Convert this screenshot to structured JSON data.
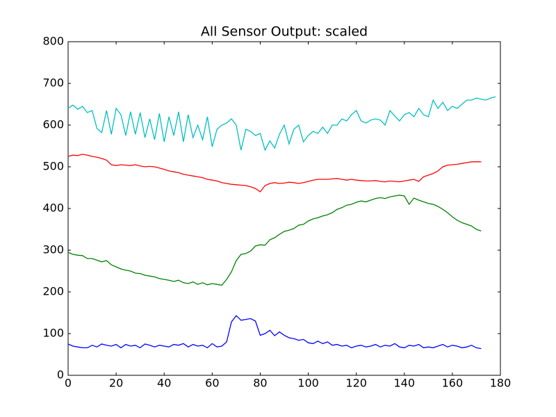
{
  "chart_data": {
    "type": "line",
    "title": "All Sensor Output: scaled",
    "xlim": [
      0,
      180
    ],
    "xticks": [
      0,
      20,
      40,
      60,
      80,
      100,
      120,
      140,
      160,
      180
    ],
    "ylim": [
      0,
      800
    ],
    "yticks": [
      0,
      100,
      200,
      300,
      400,
      500,
      600,
      700,
      800
    ],
    "grid": false,
    "series": [
      {
        "color": "#0000ff",
        "x": [
          0,
          2,
          4,
          6,
          8,
          10,
          12,
          14,
          16,
          18,
          20,
          22,
          24,
          26,
          28,
          30,
          32,
          34,
          36,
          38,
          40,
          42,
          44,
          46,
          48,
          50,
          52,
          54,
          56,
          58,
          60,
          62,
          64,
          66,
          68,
          70,
          72,
          74,
          76,
          78,
          80,
          82,
          84,
          86,
          88,
          90,
          92,
          94,
          96,
          98,
          100,
          102,
          104,
          106,
          108,
          110,
          112,
          114,
          116,
          118,
          120,
          122,
          124,
          126,
          128,
          130,
          132,
          134,
          136,
          138,
          140,
          142,
          144,
          146,
          148,
          150,
          152,
          154,
          156,
          158,
          160,
          162,
          164,
          166,
          168,
          170,
          172
        ],
        "values": [
          75,
          70,
          68,
          66,
          66,
          72,
          68,
          75,
          72,
          70,
          74,
          66,
          74,
          70,
          72,
          66,
          75,
          72,
          68,
          72,
          70,
          68,
          74,
          72,
          76,
          68,
          74,
          70,
          72,
          66,
          76,
          68,
          70,
          80,
          128,
          143,
          132,
          134,
          136,
          130,
          96,
          100,
          108,
          95,
          104,
          96,
          90,
          88,
          84,
          86,
          78,
          76,
          82,
          76,
          80,
          72,
          74,
          70,
          72,
          66,
          70,
          72,
          68,
          70,
          74,
          68,
          72,
          70,
          76,
          68,
          66,
          72,
          70,
          74,
          66,
          68,
          66,
          70,
          74,
          68,
          72,
          70,
          66,
          68,
          72,
          66,
          64
        ]
      },
      {
        "color": "#008000",
        "x": [
          0,
          2,
          4,
          6,
          8,
          10,
          12,
          14,
          16,
          18,
          20,
          22,
          24,
          26,
          28,
          30,
          32,
          34,
          36,
          38,
          40,
          42,
          44,
          46,
          48,
          50,
          52,
          54,
          56,
          58,
          60,
          62,
          64,
          66,
          68,
          70,
          72,
          74,
          76,
          78,
          80,
          82,
          84,
          86,
          88,
          90,
          92,
          94,
          96,
          98,
          100,
          102,
          104,
          106,
          108,
          110,
          112,
          114,
          116,
          118,
          120,
          122,
          124,
          126,
          128,
          130,
          132,
          134,
          136,
          138,
          140,
          142,
          144,
          146,
          148,
          150,
          152,
          154,
          156,
          158,
          160,
          162,
          164,
          166,
          168,
          170,
          172
        ],
        "values": [
          295,
          290,
          288,
          287,
          280,
          280,
          276,
          272,
          275,
          265,
          260,
          255,
          252,
          250,
          245,
          244,
          240,
          238,
          236,
          232,
          230,
          228,
          225,
          228,
          222,
          220,
          224,
          218,
          222,
          217,
          220,
          218,
          216,
          230,
          248,
          275,
          290,
          292,
          298,
          310,
          313,
          312,
          325,
          330,
          338,
          345,
          348,
          352,
          360,
          362,
          370,
          375,
          378,
          382,
          385,
          390,
          398,
          402,
          408,
          410,
          415,
          418,
          416,
          420,
          424,
          426,
          424,
          428,
          430,
          432,
          430,
          410,
          425,
          420,
          416,
          412,
          410,
          405,
          398,
          390,
          380,
          372,
          366,
          362,
          358,
          350,
          346
        ]
      },
      {
        "color": "#ff0000",
        "x": [
          0,
          2,
          4,
          6,
          8,
          10,
          12,
          14,
          16,
          18,
          20,
          22,
          24,
          26,
          28,
          30,
          32,
          34,
          36,
          38,
          40,
          42,
          44,
          46,
          48,
          50,
          52,
          54,
          56,
          58,
          60,
          62,
          64,
          66,
          68,
          70,
          72,
          74,
          76,
          78,
          80,
          82,
          84,
          86,
          88,
          90,
          92,
          94,
          96,
          98,
          100,
          102,
          104,
          106,
          108,
          110,
          112,
          114,
          116,
          118,
          120,
          122,
          124,
          126,
          128,
          130,
          132,
          134,
          136,
          138,
          140,
          142,
          144,
          146,
          148,
          150,
          152,
          154,
          156,
          158,
          160,
          162,
          164,
          166,
          168,
          170,
          172
        ],
        "values": [
          525,
          528,
          527,
          530,
          528,
          525,
          523,
          520,
          516,
          505,
          503,
          505,
          504,
          503,
          505,
          502,
          500,
          501,
          500,
          497,
          494,
          490,
          488,
          486,
          482,
          480,
          478,
          476,
          474,
          470,
          468,
          466,
          462,
          460,
          458,
          457,
          456,
          455,
          452,
          448,
          440,
          455,
          460,
          462,
          460,
          461,
          463,
          462,
          460,
          462,
          465,
          468,
          470,
          470,
          470,
          471,
          472,
          470,
          468,
          470,
          468,
          467,
          466,
          466,
          467,
          465,
          464,
          466,
          465,
          464,
          466,
          468,
          470,
          465,
          476,
          480,
          484,
          490,
          500,
          504,
          505,
          506,
          508,
          510,
          512,
          512,
          512
        ]
      },
      {
        "color": "#00bfbf",
        "x": [
          0,
          2,
          4,
          6,
          8,
          10,
          12,
          14,
          16,
          18,
          20,
          22,
          24,
          26,
          28,
          30,
          32,
          34,
          36,
          38,
          40,
          42,
          44,
          46,
          48,
          50,
          52,
          54,
          56,
          58,
          60,
          62,
          64,
          66,
          68,
          70,
          72,
          74,
          76,
          78,
          80,
          82,
          84,
          86,
          88,
          90,
          92,
          94,
          96,
          98,
          100,
          102,
          104,
          106,
          108,
          110,
          112,
          114,
          116,
          118,
          120,
          122,
          124,
          126,
          128,
          130,
          132,
          134,
          136,
          138,
          140,
          142,
          144,
          146,
          148,
          150,
          152,
          154,
          156,
          158,
          160,
          162,
          164,
          166,
          168,
          170,
          172,
          174,
          176,
          178
        ],
        "values": [
          640,
          648,
          638,
          645,
          630,
          635,
          592,
          582,
          635,
          578,
          640,
          625,
          575,
          632,
          578,
          630,
          570,
          615,
          565,
          628,
          560,
          620,
          575,
          632,
          560,
          625,
          570,
          600,
          565,
          620,
          548,
          590,
          600,
          605,
          615,
          600,
          540,
          590,
          585,
          575,
          580,
          540,
          562,
          545,
          578,
          600,
          555,
          590,
          600,
          560,
          575,
          585,
          580,
          595,
          580,
          600,
          600,
          615,
          610,
          625,
          635,
          610,
          605,
          612,
          615,
          612,
          600,
          635,
          622,
          610,
          625,
          630,
          620,
          640,
          625,
          620,
          660,
          640,
          655,
          635,
          645,
          640,
          650,
          660,
          660,
          665,
          662,
          660,
          665,
          668
        ]
      }
    ]
  }
}
